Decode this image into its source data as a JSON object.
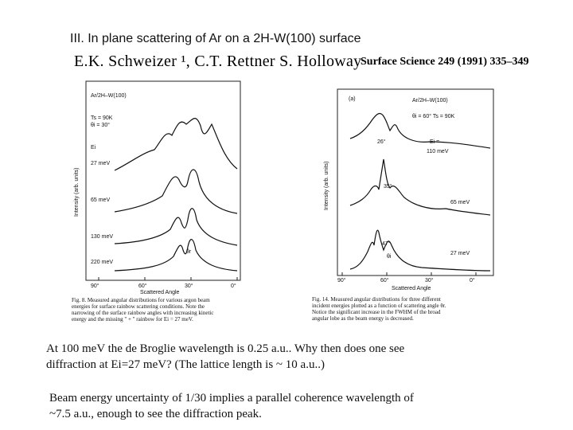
{
  "slide": {
    "title": "III. In plane scattering of Ar on a 2H-W(100) surface",
    "authors": "E.K. Schweizer ¹, C.T. Rettner S. Holloway",
    "journal": "Surface Science 249 (1991) 335–349"
  },
  "figure_left": {
    "system": "Ar/2H–W(100)",
    "ts": "Ts = 90K",
    "theta_i": "θi = 30°",
    "ei_label": "Ei",
    "energies": [
      "27 meV",
      "65 meV",
      "130 meV",
      "220 meV"
    ],
    "ylabel": "Intensity (arb. units)",
    "xticks": [
      "90°",
      "60°",
      "30°",
      "0°"
    ],
    "xlabel": "Scattered Angle",
    "rainbow_mark": "θr",
    "caption": [
      "Fig. 8. Measured angular distributions for various argon beam",
      "energies for surface rainbow scattering conditions. Note the",
      "narrowing of the surface rainbow angles with increasing kinetic",
      "energy and the missing \" + \" rainbow for Ei = 27 meV."
    ]
  },
  "figure_right": {
    "panel": "(a)",
    "system": "Ar/2H–W(100)",
    "params": "θi = 60°  Ts = 90K",
    "ei_label": "Ei =",
    "energies": [
      "110 meV",
      "65 meV",
      "27 meV"
    ],
    "peak_angles": [
      "26°",
      "35°",
      "47°"
    ],
    "ylabel": "Intensity (arb. units)",
    "xticks": [
      "90°",
      "60°",
      "30°",
      "0°"
    ],
    "xlabel": "Scattered Angle",
    "theta_i_mark": "θi",
    "caption": [
      "Fig. 14.  Measured angular distributions for three different",
      "incident energies plotted as a function of scattering angle θr.",
      "Notice the significant increase in the FWHM of the broad",
      "angular lobe as the beam energy is decreased."
    ]
  },
  "text": {
    "para1_line1": "At 100 meV the de Broglie wavelength is 0.25 a.u.. Why then does one see",
    "para1_line2": "diffraction at Ei=27 meV?  (The lattice length is ~ 10 a.u..)",
    "para2_line1": "Beam energy uncertainty of 1/30 implies a parallel coherence wavelength of",
    "para2_line2": "~7.5 a.u., enough to see the diffraction peak."
  }
}
